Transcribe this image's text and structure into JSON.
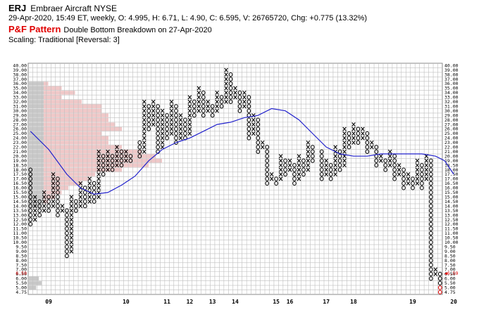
{
  "header": {
    "symbol": "ERJ",
    "company": "Embraer Aircraft",
    "exchange": "NYSE",
    "quote": "29-Apr-2020, 15:49 ET, weekly, O: 4.995, H: 6.71, L: 4.90, C: 6.595, V: 26765720, Chg: +0.775 (13.32%)",
    "pattern_label": "P&F Pattern",
    "pattern_text": "Double Bottom Breakdown on 27-Apr-2020",
    "scaling": "Scaling: Traditional [Reversal: 3]"
  },
  "colors": {
    "x_mark": "#000000",
    "o_mark": "#000000",
    "current_o": "#e00000",
    "moving_average": "#2222cc",
    "volume_profile_gray": "#c8c8c8",
    "volume_profile_pink": "#f0c8c8",
    "grid": "#bfbfbf",
    "current_price_label": "#e00000"
  },
  "chart_data": {
    "type": "point_and_figure",
    "box_size_levels": [
      "40.00",
      "39.00",
      "38.00",
      "37.00",
      "36.00",
      "35.00",
      "34.00",
      "33.00",
      "32.00",
      "31.00",
      "30.00",
      "29.00",
      "28.00",
      "27.00",
      "26.00",
      "25.00",
      "24.00",
      "23.00",
      "22.00",
      "21.00",
      "20.00",
      "19.00",
      "18.50",
      "18.00",
      "17.50",
      "17.00",
      "16.50",
      "16.00",
      "15.50",
      "15.00",
      "14.50",
      "14.00",
      "13.50",
      "13.00",
      "12.50",
      "12.00",
      "11.50",
      "11.00",
      "10.50",
      "10.00",
      "9.50",
      "9.00",
      "8.50",
      "8.00",
      "7.50",
      "7.00",
      "6.50",
      "6.00",
      "5.50",
      "5.00",
      "4.75"
    ],
    "current_price_label": "6.59",
    "x_axis_labels": [
      {
        "label": "09",
        "col": 4
      },
      {
        "label": "10",
        "col": 21
      },
      {
        "label": "11",
        "col": 30
      },
      {
        "label": "12",
        "col": 35
      },
      {
        "label": "13",
        "col": 40
      },
      {
        "label": "14",
        "col": 45
      },
      {
        "label": "15",
        "col": 54
      },
      {
        "label": "16",
        "col": 57
      },
      {
        "label": "17",
        "col": 65
      },
      {
        "label": "18",
        "col": 71
      },
      {
        "label": "19",
        "col": 84
      },
      {
        "label": "20",
        "col": 93
      }
    ],
    "columns": [
      {
        "type": "O",
        "high": "18.00",
        "low": "12.00"
      },
      {
        "type": "X",
        "high": "15.00",
        "low": "12.50"
      },
      {
        "type": "O",
        "high": "14.50",
        "low": "13.00"
      },
      {
        "type": "X",
        "high": "15.50",
        "low": "13.50"
      },
      {
        "type": "O",
        "high": "15.00",
        "low": "13.50"
      },
      {
        "type": "X",
        "high": "17.50",
        "low": "14.00"
      },
      {
        "type": "O",
        "high": "17.00",
        "low": "13.00"
      },
      {
        "type": "X",
        "high": "14.00",
        "low": "13.50"
      },
      {
        "type": "O",
        "high": "13.50",
        "low": "8.50"
      },
      {
        "type": "X",
        "high": "15.00",
        "low": "9.00"
      },
      {
        "type": "O",
        "high": "14.50",
        "low": "13.50"
      },
      {
        "type": "X",
        "high": "16.50",
        "low": "14.00"
      },
      {
        "type": "O",
        "high": "16.00",
        "low": "14.00"
      },
      {
        "type": "X",
        "high": "17.00",
        "low": "14.50"
      },
      {
        "type": "O",
        "high": "16.50",
        "low": "14.50"
      },
      {
        "type": "X",
        "high": "21.00",
        "low": "15.00"
      },
      {
        "type": "O",
        "high": "20.00",
        "low": "17.50"
      },
      {
        "type": "X",
        "high": "21.00",
        "low": "18.00"
      },
      {
        "type": "O",
        "high": "20.00",
        "low": "18.00"
      },
      {
        "type": "X",
        "high": "22.00",
        "low": "18.50"
      },
      {
        "type": "O",
        "high": "21.00",
        "low": "18.50"
      },
      {
        "type": "X",
        "high": "21.00",
        "low": "19.00"
      },
      {
        "type": "O",
        "high": "20.00",
        "low": "19.00"
      },
      {
        "type": "X",
        "high": "24.00",
        "low": "19.50"
      },
      {
        "type": "O",
        "high": "23.00",
        "low": "20.00"
      },
      {
        "type": "X",
        "high": "32.00",
        "low": "21.00"
      },
      {
        "type": "O",
        "high": "31.00",
        "low": "26.00"
      },
      {
        "type": "X",
        "high": "32.00",
        "low": "27.00"
      },
      {
        "type": "O",
        "high": "31.00",
        "low": "21.00"
      },
      {
        "type": "X",
        "high": "30.00",
        "low": "22.00"
      },
      {
        "type": "O",
        "high": "29.00",
        "low": "24.00"
      },
      {
        "type": "X",
        "high": "32.00",
        "low": "25.00"
      },
      {
        "type": "O",
        "high": "31.00",
        "low": "23.00"
      },
      {
        "type": "X",
        "high": "29.00",
        "low": "24.00"
      },
      {
        "type": "O",
        "high": "28.00",
        "low": "24.00"
      },
      {
        "type": "X",
        "high": "33.00",
        "low": "25.00"
      },
      {
        "type": "O",
        "high": "32.00",
        "low": "29.00"
      },
      {
        "type": "X",
        "high": "35.00",
        "low": "30.00"
      },
      {
        "type": "O",
        "high": "34.00",
        "low": "29.00"
      },
      {
        "type": "X",
        "high": "32.00",
        "low": "30.00"
      },
      {
        "type": "O",
        "high": "31.00",
        "low": "29.00"
      },
      {
        "type": "X",
        "high": "34.00",
        "low": "30.00"
      },
      {
        "type": "O",
        "high": "33.00",
        "low": "31.00"
      },
      {
        "type": "X",
        "high": "39.00",
        "low": "32.00"
      },
      {
        "type": "O",
        "high": "38.00",
        "low": "32.00"
      },
      {
        "type": "X",
        "high": "35.00",
        "low": "33.00"
      },
      {
        "type": "O",
        "high": "34.00",
        "low": "30.00"
      },
      {
        "type": "X",
        "high": "34.00",
        "low": "31.00"
      },
      {
        "type": "O",
        "high": "33.00",
        "low": "24.00"
      },
      {
        "type": "X",
        "high": "29.00",
        "low": "25.00"
      },
      {
        "type": "O",
        "high": "28.00",
        "low": "21.00"
      },
      {
        "type": "X",
        "high": "23.00",
        "low": "22.00"
      },
      {
        "type": "O",
        "high": "22.00",
        "low": "16.50"
      },
      {
        "type": "X",
        "high": "17.50",
        "low": "17.00"
      },
      {
        "type": "O",
        "high": "17.00",
        "low": "16.50"
      },
      {
        "type": "X",
        "high": "20.00",
        "low": "17.00"
      },
      {
        "type": "O",
        "high": "19.00",
        "low": "17.50"
      },
      {
        "type": "X",
        "high": "19.00",
        "low": "18.00"
      },
      {
        "type": "O",
        "high": "18.50",
        "low": "16.50"
      },
      {
        "type": "X",
        "high": "20.00",
        "low": "17.00"
      },
      {
        "type": "O",
        "high": "19.00",
        "low": "17.50"
      },
      {
        "type": "X",
        "high": "23.00",
        "low": "18.00"
      },
      {
        "type": "O",
        "high": "22.00",
        "low": "19.00"
      },
      {
        "type": "X",
        "high": "22.00",
        "low": "19.50"
      },
      {
        "type": "O",
        "high": "21.00",
        "low": "17.00"
      },
      {
        "type": "X",
        "high": "19.00",
        "low": "17.50"
      },
      {
        "type": "O",
        "high": "18.50",
        "low": "17.00"
      },
      {
        "type": "X",
        "high": "22.00",
        "low": "17.50"
      },
      {
        "type": "O",
        "high": "21.00",
        "low": "18.00"
      },
      {
        "type": "X",
        "high": "26.00",
        "low": "18.50"
      },
      {
        "type": "O",
        "high": "25.00",
        "low": "22.00"
      },
      {
        "type": "X",
        "high": "27.00",
        "low": "23.00"
      },
      {
        "type": "O",
        "high": "26.00",
        "low": "23.00"
      },
      {
        "type": "X",
        "high": "26.00",
        "low": "24.00"
      },
      {
        "type": "O",
        "high": "25.00",
        "low": "21.00"
      },
      {
        "type": "X",
        "high": "23.00",
        "low": "22.00"
      },
      {
        "type": "O",
        "high": "22.00",
        "low": "18.50"
      },
      {
        "type": "X",
        "high": "20.00",
        "low": "19.00"
      },
      {
        "type": "O",
        "high": "19.00",
        "low": "18.00"
      },
      {
        "type": "X",
        "high": "21.00",
        "low": "18.50"
      },
      {
        "type": "O",
        "high": "20.00",
        "low": "17.00"
      },
      {
        "type": "X",
        "high": "18.50",
        "low": "17.50"
      },
      {
        "type": "O",
        "high": "18.00",
        "low": "16.00"
      },
      {
        "type": "X",
        "high": "17.50",
        "low": "16.50"
      },
      {
        "type": "O",
        "high": "17.00",
        "low": "16.00"
      },
      {
        "type": "X",
        "high": "19.00",
        "low": "16.50"
      },
      {
        "type": "O",
        "high": "18.50",
        "low": "16.00"
      },
      {
        "type": "X",
        "high": "20.00",
        "low": "17.00"
      },
      {
        "type": "O",
        "high": "19.00",
        "low": "6.00"
      },
      {
        "type": "X",
        "high": "7.00",
        "low": "6.50"
      },
      {
        "type": "O",
        "high": "6.50",
        "low": "4.75",
        "current": true
      }
    ],
    "moving_average": [
      [
        0,
        25.5
      ],
      [
        4,
        21.5
      ],
      [
        8,
        17.5
      ],
      [
        11,
        16.0
      ],
      [
        14,
        15.3
      ],
      [
        17,
        15.5
      ],
      [
        20,
        16.3
      ],
      [
        23,
        17.3
      ],
      [
        26,
        19.0
      ],
      [
        29,
        21.5
      ],
      [
        32,
        23.0
      ],
      [
        35,
        24.0
      ],
      [
        38,
        25.5
      ],
      [
        41,
        27.0
      ],
      [
        44,
        27.5
      ],
      [
        47,
        28.5
      ],
      [
        50,
        29.0
      ],
      [
        53,
        30.5
      ],
      [
        56,
        30.0
      ],
      [
        59,
        28.0
      ],
      [
        62,
        25.0
      ],
      [
        65,
        22.0
      ],
      [
        68,
        20.5
      ],
      [
        71,
        20.0
      ],
      [
        74,
        20.0
      ],
      [
        77,
        20.5
      ],
      [
        80,
        20.5
      ],
      [
        83,
        20.5
      ],
      [
        86,
        20.5
      ],
      [
        89,
        20.0
      ],
      [
        91,
        19.0
      ],
      [
        93,
        17.5
      ]
    ],
    "volume_profile": [
      {
        "price": "36.00",
        "value": 0.15
      },
      {
        "price": "35.00",
        "value": 0.25
      },
      {
        "price": "34.00",
        "value": 0.35
      },
      {
        "price": "33.00",
        "value": 0.25
      },
      {
        "price": "32.00",
        "value": 0.4
      },
      {
        "price": "31.00",
        "value": 0.55
      },
      {
        "price": "30.00",
        "value": 0.55
      },
      {
        "price": "29.00",
        "value": 0.6
      },
      {
        "price": "28.00",
        "value": 0.6
      },
      {
        "price": "27.00",
        "value": 0.65
      },
      {
        "price": "26.00",
        "value": 0.7
      },
      {
        "price": "25.00",
        "value": 0.55
      },
      {
        "price": "24.00",
        "value": 0.6
      },
      {
        "price": "23.00",
        "value": 0.6
      },
      {
        "price": "22.00",
        "value": 0.7
      },
      {
        "price": "21.00",
        "value": 0.85
      },
      {
        "price": "20.00",
        "value": 0.95
      },
      {
        "price": "19.00",
        "value": 1.0
      },
      {
        "price": "18.50",
        "value": 0.9
      },
      {
        "price": "18.00",
        "value": 0.7
      },
      {
        "price": "17.50",
        "value": 0.5
      },
      {
        "price": "17.00",
        "value": 0.45
      },
      {
        "price": "16.50",
        "value": 0.4
      },
      {
        "price": "16.00",
        "value": 0.3
      },
      {
        "price": "15.50",
        "value": 0.25
      },
      {
        "price": "15.00",
        "value": 0.2
      },
      {
        "price": "14.50",
        "value": 0.15
      },
      {
        "price": "14.00",
        "value": 0.1
      },
      {
        "price": "6.00",
        "value": 0.08
      },
      {
        "price": "5.50",
        "value": 0.1
      },
      {
        "price": "5.00",
        "value": 0.06
      }
    ]
  }
}
